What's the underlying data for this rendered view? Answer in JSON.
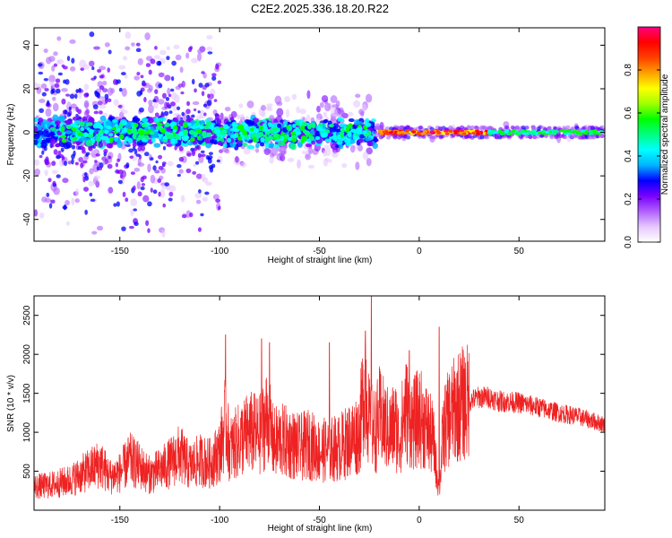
{
  "title": "C2E2.2025.336.18.20.R22",
  "colors": {
    "accent": "#ee2222",
    "background": "#ffffff",
    "axis": "#000000"
  },
  "chart_data": [
    {
      "type": "heatmap",
      "xlabel": "Height of straight line (km)",
      "ylabel": "Frequency (Hz)",
      "xlim": [
        -193,
        93
      ],
      "ylim": [
        -50,
        48
      ],
      "xticks": [
        -150,
        -100,
        -50,
        0,
        50
      ],
      "yticks": [
        -40,
        -20,
        0,
        20,
        40
      ],
      "grid": false,
      "colorbar": {
        "label": "Normalized spectral amplitude",
        "range": [
          0,
          1
        ],
        "ticks": [
          "0.0",
          "0.2",
          "0.4",
          "0.6",
          "0.8"
        ],
        "colormap": [
          "#ffffff",
          "#e6c8ff",
          "#b060ff",
          "#7a00ff",
          "#0000ff",
          "#00b4ff",
          "#00ffff",
          "#00ff80",
          "#00ff00",
          "#a0ff00",
          "#ffff00",
          "#ffa000",
          "#ff4000",
          "#ff0000",
          "#ff0080"
        ]
      },
      "description": "Broad scattered spectral power for heights below about -25 km; narrow high-amplitude band near 0 Hz from -20 to 90 km"
    },
    {
      "type": "line",
      "xlabel": "Height of straight line (km)",
      "ylabel": "SNR (10 * v/v)",
      "xlim": [
        -193,
        93
      ],
      "ylim": [
        0,
        2750
      ],
      "xticks": [
        -150,
        -100,
        -50,
        0,
        50
      ],
      "yticks": [
        500,
        1000,
        1500,
        2000,
        2500
      ],
      "grid": false,
      "series": [
        {
          "color": "#ee2222",
          "x": [
            -193,
            -185,
            -175,
            -165,
            -160,
            -155,
            -150,
            -145,
            -140,
            -135,
            -130,
            -125,
            -120,
            -115,
            -110,
            -105,
            -100,
            -97,
            -95,
            -90,
            -85,
            -80,
            -76,
            -73,
            -70,
            -65,
            -60,
            -55,
            -50,
            -45,
            -40,
            -35,
            -30,
            -27,
            -25,
            -22,
            -20,
            -15,
            -12,
            -10,
            -7,
            -5,
            -3,
            0,
            3,
            5,
            7,
            10,
            12,
            15,
            20,
            25,
            30,
            35,
            40,
            50,
            60,
            70,
            80,
            93
          ],
          "values": [
            300,
            320,
            380,
            520,
            600,
            430,
            480,
            650,
            560,
            450,
            520,
            600,
            720,
            560,
            640,
            600,
            750,
            1150,
            780,
            900,
            1000,
            960,
            1200,
            850,
            900,
            860,
            800,
            850,
            760,
            780,
            800,
            900,
            1000,
            1700,
            1100,
            1000,
            1200,
            1000,
            1100,
            900,
            1300,
            1200,
            1100,
            1200,
            1100,
            1000,
            900,
            250,
            1000,
            1200,
            1350,
            1400,
            1450,
            1450,
            1400,
            1380,
            1320,
            1250,
            1200,
            1100
          ],
          "peaks": [
            {
              "x": -97,
              "value": 2250
            },
            {
              "x": -79,
              "value": 2200
            },
            {
              "x": -75,
              "value": 2150
            },
            {
              "x": -45,
              "value": 2150
            },
            {
              "x": -24,
              "value": 2750
            },
            {
              "x": -27,
              "value": 2300
            },
            {
              "x": -5,
              "value": 2050
            },
            {
              "x": 10,
              "value": 2350
            }
          ]
        }
      ]
    }
  ]
}
